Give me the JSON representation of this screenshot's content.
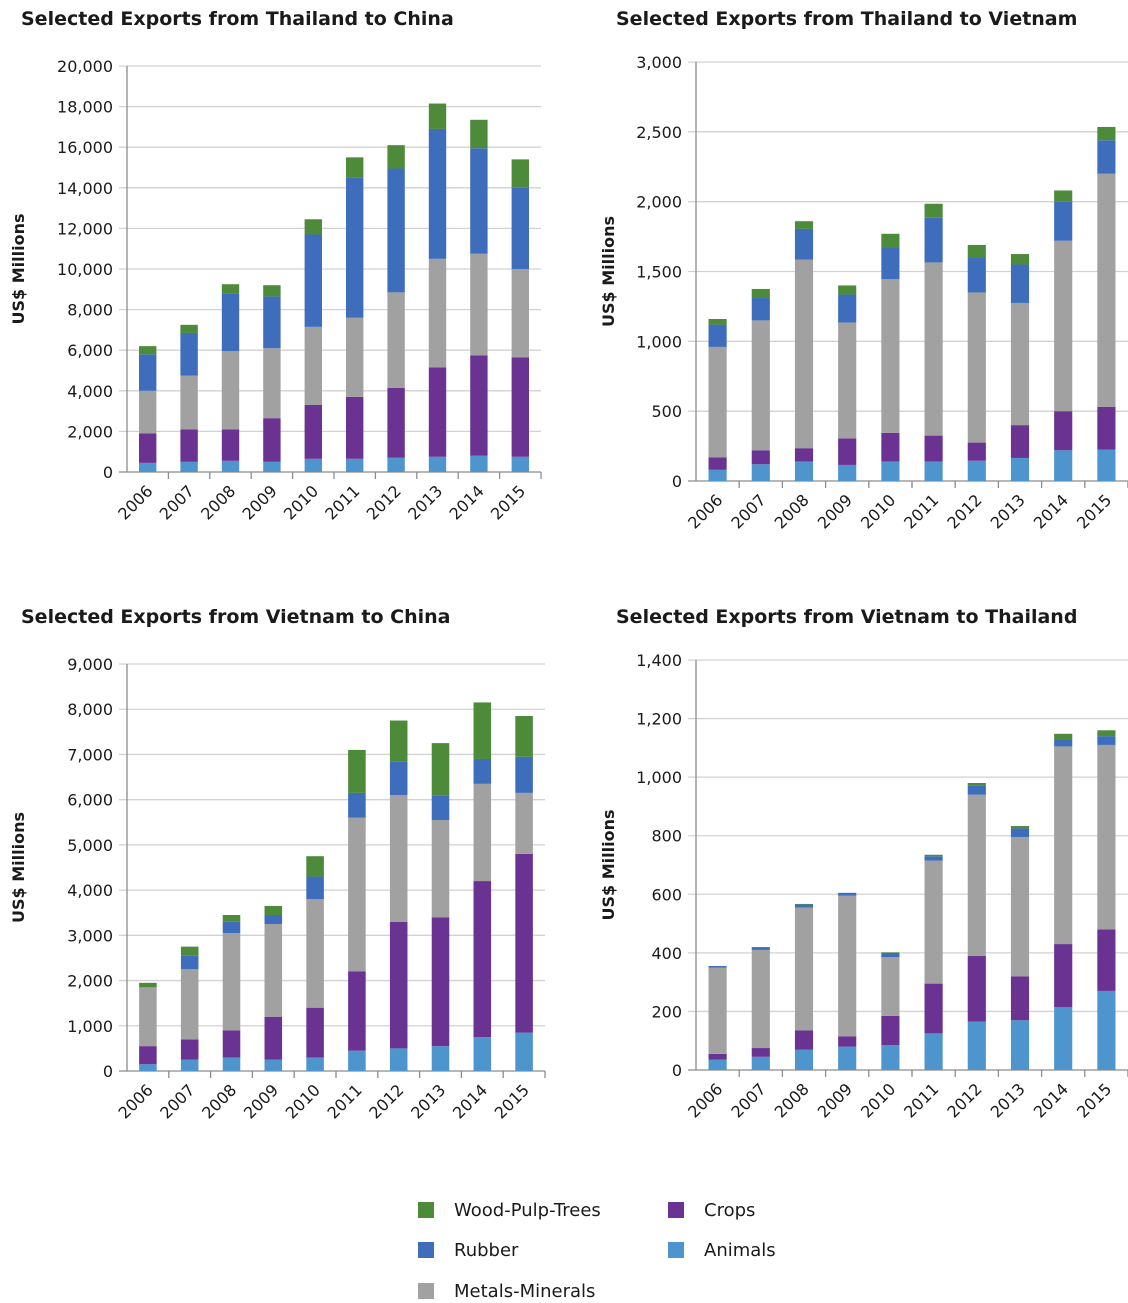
{
  "colors": {
    "Animals": "#4e95cd",
    "Crops": "#6a3291",
    "Metals-Minerals": "#a1a1a1",
    "Rubber": "#3d6dbb",
    "Wood-Pulp-Trees": "#4d8b3a",
    "grid": "#d2d2d2",
    "axis": "#8c8c8c"
  },
  "legend": {
    "items": [
      {
        "key": "Wood-Pulp-Trees",
        "label": "Wood-Pulp-Trees"
      },
      {
        "key": "Crops",
        "label": "Crops"
      },
      {
        "key": "Rubber",
        "label": "Rubber"
      },
      {
        "key": "Animals",
        "label": "Animals"
      },
      {
        "key": "Metals-Minerals",
        "label": "Metals-Minerals"
      }
    ]
  },
  "chart_data": [
    {
      "type": "bar",
      "stacked": true,
      "title": "Selected Exports from Thailand to China",
      "ylabel": "US$ Millions",
      "ylim": [
        0,
        20000
      ],
      "yticks": [
        0,
        2000,
        4000,
        6000,
        8000,
        10000,
        12000,
        14000,
        16000,
        18000,
        20000
      ],
      "ytick_labels": [
        "0",
        "2,000",
        "4,000",
        "6,000",
        "8,000",
        "10,000",
        "12,000",
        "14,000",
        "16,000",
        "18,000",
        "20,000"
      ],
      "categories": [
        "2006",
        "2007",
        "2008",
        "2009",
        "2010",
        "2011",
        "2012",
        "2013",
        "2014",
        "2015"
      ],
      "series": [
        {
          "name": "Animals",
          "values": [
            450,
            500,
            550,
            500,
            650,
            650,
            700,
            750,
            800,
            750
          ]
        },
        {
          "name": "Crops",
          "values": [
            1450,
            1600,
            1550,
            2150,
            2650,
            3050,
            3450,
            4400,
            4950,
            4900
          ]
        },
        {
          "name": "Metals-Minerals",
          "values": [
            2100,
            2650,
            3850,
            3450,
            3850,
            3900,
            4700,
            5350,
            5000,
            4350
          ]
        },
        {
          "name": "Rubber",
          "values": [
            1800,
            2100,
            2850,
            2550,
            4550,
            6900,
            6100,
            6400,
            5200,
            4000
          ]
        },
        {
          "name": "Wood-Pulp-Trees",
          "values": [
            400,
            400,
            450,
            550,
            750,
            1000,
            1150,
            1250,
            1400,
            1400
          ]
        }
      ]
    },
    {
      "type": "bar",
      "stacked": true,
      "title": "Selected Exports from Thailand to Vietnam",
      "ylabel": "US$ Millions",
      "ylim": [
        0,
        3000
      ],
      "yticks": [
        0,
        500,
        1000,
        1500,
        2000,
        2500,
        3000
      ],
      "ytick_labels": [
        "0",
        "500",
        "1,000",
        "1,500",
        "2,000",
        "2,500",
        "3,000"
      ],
      "categories": [
        "2006",
        "2007",
        "2008",
        "2009",
        "2010",
        "2011",
        "2012",
        "2013",
        "2014",
        "2015"
      ],
      "series": [
        {
          "name": "Animals",
          "values": [
            80,
            120,
            140,
            115,
            140,
            140,
            145,
            165,
            220,
            225
          ]
        },
        {
          "name": "Crops",
          "values": [
            90,
            100,
            95,
            190,
            205,
            185,
            130,
            235,
            280,
            305
          ]
        },
        {
          "name": "Metals-Minerals",
          "values": [
            790,
            930,
            1350,
            830,
            1100,
            1240,
            1075,
            875,
            1220,
            1670
          ]
        },
        {
          "name": "Rubber",
          "values": [
            160,
            160,
            220,
            200,
            230,
            320,
            250,
            275,
            280,
            240
          ]
        },
        {
          "name": "Wood-Pulp-Trees",
          "values": [
            40,
            65,
            55,
            65,
            95,
            100,
            90,
            75,
            80,
            95
          ]
        }
      ]
    },
    {
      "type": "bar",
      "stacked": true,
      "title": "Selected Exports from Vietnam to China",
      "ylabel": "US$ Millions",
      "ylim": [
        0,
        9000
      ],
      "yticks": [
        0,
        1000,
        2000,
        3000,
        4000,
        5000,
        6000,
        7000,
        8000,
        9000
      ],
      "ytick_labels": [
        "0",
        "1,000",
        "2,000",
        "3,000",
        "4,000",
        "5,000",
        "6,000",
        "7,000",
        "8,000",
        "9,000"
      ],
      "categories": [
        "2006",
        "2007",
        "2008",
        "2009",
        "2010",
        "2011",
        "2012",
        "2013",
        "2014",
        "2015"
      ],
      "series": [
        {
          "name": "Animals",
          "values": [
            150,
            250,
            300,
            250,
            300,
            450,
            500,
            550,
            750,
            850
          ]
        },
        {
          "name": "Crops",
          "values": [
            400,
            450,
            600,
            950,
            1100,
            1750,
            2800,
            2850,
            3450,
            3950
          ]
        },
        {
          "name": "Metals-Minerals",
          "values": [
            1300,
            1550,
            2150,
            2050,
            2400,
            3400,
            2800,
            2150,
            2150,
            1350
          ]
        },
        {
          "name": "Rubber",
          "values": [
            0,
            300,
            250,
            200,
            500,
            550,
            750,
            550,
            550,
            800
          ]
        },
        {
          "name": "Wood-Pulp-Trees",
          "values": [
            100,
            200,
            150,
            200,
            450,
            950,
            900,
            1150,
            1250,
            900
          ]
        }
      ]
    },
    {
      "type": "bar",
      "stacked": true,
      "title": "Selected Exports from Vietnam to Thailand",
      "ylabel": "US$ Millions",
      "ylim": [
        0,
        1400
      ],
      "yticks": [
        0,
        200,
        400,
        600,
        800,
        1000,
        1200,
        1400
      ],
      "ytick_labels": [
        "0",
        "200",
        "400",
        "600",
        "800",
        "1,000",
        "1,200",
        "1,400"
      ],
      "categories": [
        "2006",
        "2007",
        "2008",
        "2009",
        "2010",
        "2011",
        "2012",
        "2013",
        "2014",
        "2015"
      ],
      "series": [
        {
          "name": "Animals",
          "values": [
            35,
            45,
            70,
            80,
            85,
            125,
            165,
            170,
            215,
            270
          ]
        },
        {
          "name": "Crops",
          "values": [
            20,
            30,
            65,
            35,
            100,
            170,
            225,
            150,
            215,
            210
          ]
        },
        {
          "name": "Metals-Minerals",
          "values": [
            295,
            335,
            420,
            480,
            200,
            420,
            550,
            475,
            675,
            630
          ]
        },
        {
          "name": "Rubber",
          "values": [
            5,
            8,
            10,
            10,
            15,
            15,
            30,
            30,
            25,
            30
          ]
        },
        {
          "name": "Wood-Pulp-Trees",
          "values": [
            0,
            2,
            2,
            0,
            2,
            5,
            10,
            8,
            18,
            20
          ]
        }
      ]
    }
  ]
}
